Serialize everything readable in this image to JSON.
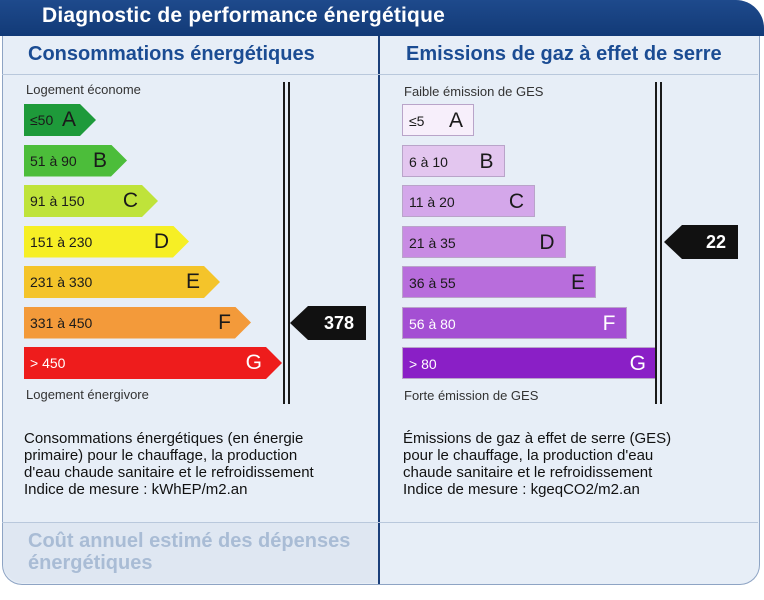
{
  "title": "Diagnostic de performance énergétique",
  "energy": {
    "heading": "Consommations énergétiques",
    "top_label": "Logement économe",
    "bottom_label": "Logement énergivore",
    "classes": [
      {
        "range": "≤50",
        "letter": "A",
        "color": "#1e9a3a"
      },
      {
        "range": "51 à 90",
        "letter": "B",
        "color": "#4cbd3a"
      },
      {
        "range": "91 à 150",
        "letter": "C",
        "color": "#bfe33a"
      },
      {
        "range": "151 à 230",
        "letter": "D",
        "color": "#f6ef25"
      },
      {
        "range": "231 à 330",
        "letter": "E",
        "color": "#f4c42a"
      },
      {
        "range": "331 à 450",
        "letter": "F",
        "color": "#f39a3a"
      },
      {
        "range": "> 450",
        "letter": "G",
        "color": "#ee1c1c"
      }
    ],
    "value": "378",
    "value_class": "F",
    "description": [
      "Consommations énergétiques (en énergie",
      "primaire) pour le chauffage, la production",
      "d'eau chaude sanitaire et le refroidissement",
      "Indice de mesure : kWhEP/m2.an"
    ]
  },
  "ges": {
    "heading": "Emissions de gaz à effet de serre",
    "top_label": "Faible émission de GES",
    "bottom_label": "Forte émission de GES",
    "classes": [
      {
        "range": "≤5",
        "letter": "A",
        "color": "#f7effb"
      },
      {
        "range": "6 à 10",
        "letter": "B",
        "color": "#e3c6ef"
      },
      {
        "range": "11 à 20",
        "letter": "C",
        "color": "#d4a7ea"
      },
      {
        "range": "21 à 35",
        "letter": "D",
        "color": "#c88be3"
      },
      {
        "range": "36 à 55",
        "letter": "E",
        "color": "#b86ddc"
      },
      {
        "range": "56 à 80",
        "letter": "F",
        "color": "#a44fd3"
      },
      {
        "range": "> 80",
        "letter": "G",
        "color": "#8a1fc6"
      }
    ],
    "value": "22",
    "value_class": "D",
    "description": [
      "Émissions de gaz à effet de serre (GES)",
      "pour le chauffage, la production d'eau",
      "chaude sanitaire et le refroidissement",
      "Indice de mesure : kgeqCO2/m2.an"
    ]
  },
  "cost": {
    "label_line1": "Coût annuel estimé des dépenses",
    "label_line2": "énergétiques"
  }
}
